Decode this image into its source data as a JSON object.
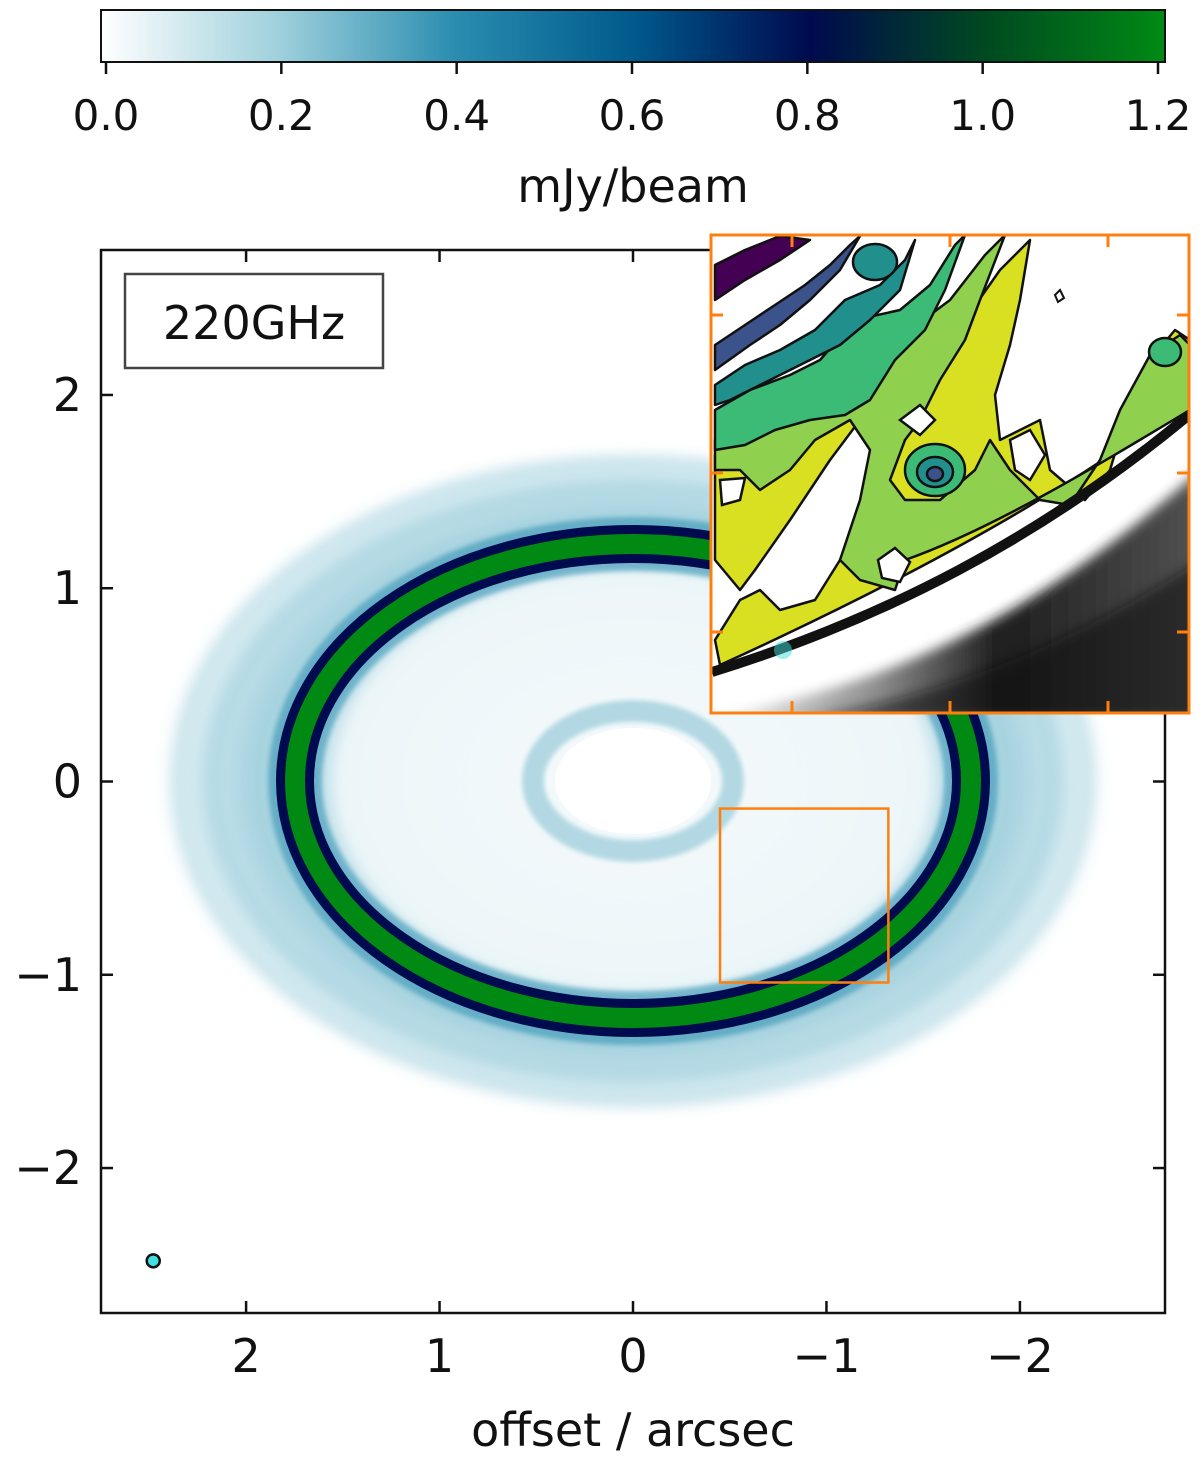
{
  "chart_data": {
    "type": "heatmap",
    "title": "",
    "frequency_label": "220GHz",
    "colorbar": {
      "label": "mJy/beam",
      "ticks": [
        "0.0",
        "0.2",
        "0.4",
        "0.6",
        "0.8",
        "1.0",
        "1.2"
      ],
      "tick_values": [
        0.0,
        0.2,
        0.4,
        0.6,
        0.8,
        1.0,
        1.2
      ],
      "range": [
        0.0,
        1.21
      ],
      "colors": [
        "#ffffff",
        "#9fd0dc",
        "#2a8db0",
        "#005a8c",
        "#000a4e",
        "#004a20",
        "#008a14"
      ],
      "placement": "top"
    },
    "xlabel": "offset / arcsec",
    "ylabel": "",
    "x_ticks": [
      "2",
      "1",
      "0",
      "−1",
      "−2"
    ],
    "x_tick_values": [
      2,
      1,
      0,
      -1,
      -2
    ],
    "y_ticks": [
      "2",
      "1",
      "0",
      "−1",
      "−2"
    ],
    "y_tick_values": [
      2,
      1,
      0,
      -1,
      -2
    ],
    "xlim": [
      2.75,
      -2.75
    ],
    "ylim": [
      -2.75,
      2.75
    ],
    "grid": false,
    "structures": {
      "bright_ring": {
        "semi_major_arcsec": 1.75,
        "semi_minor_arcsec": 1.22,
        "center": [
          0,
          0
        ],
        "peak_mJy_per_beam": 1.2
      },
      "outer_halo": {
        "semi_major_arcsec": 2.5,
        "semi_minor_arcsec": 1.75,
        "peak_mJy_per_beam": 0.22
      },
      "inner_ring": {
        "semi_major_arcsec": 0.48,
        "semi_minor_arcsec": 0.33,
        "peak_mJy_per_beam": 0.15
      }
    },
    "beam": {
      "x": 2.48,
      "y": -2.48,
      "color": "#40e0e0"
    },
    "zoom_region": {
      "x_range": [
        -0.45,
        -1.32
      ],
      "y_range": [
        -0.14,
        -1.04
      ],
      "color": "#ff7f0e"
    },
    "inset": {
      "description_colormap": "viridis",
      "frame_color": "#ff7f0e"
    }
  }
}
